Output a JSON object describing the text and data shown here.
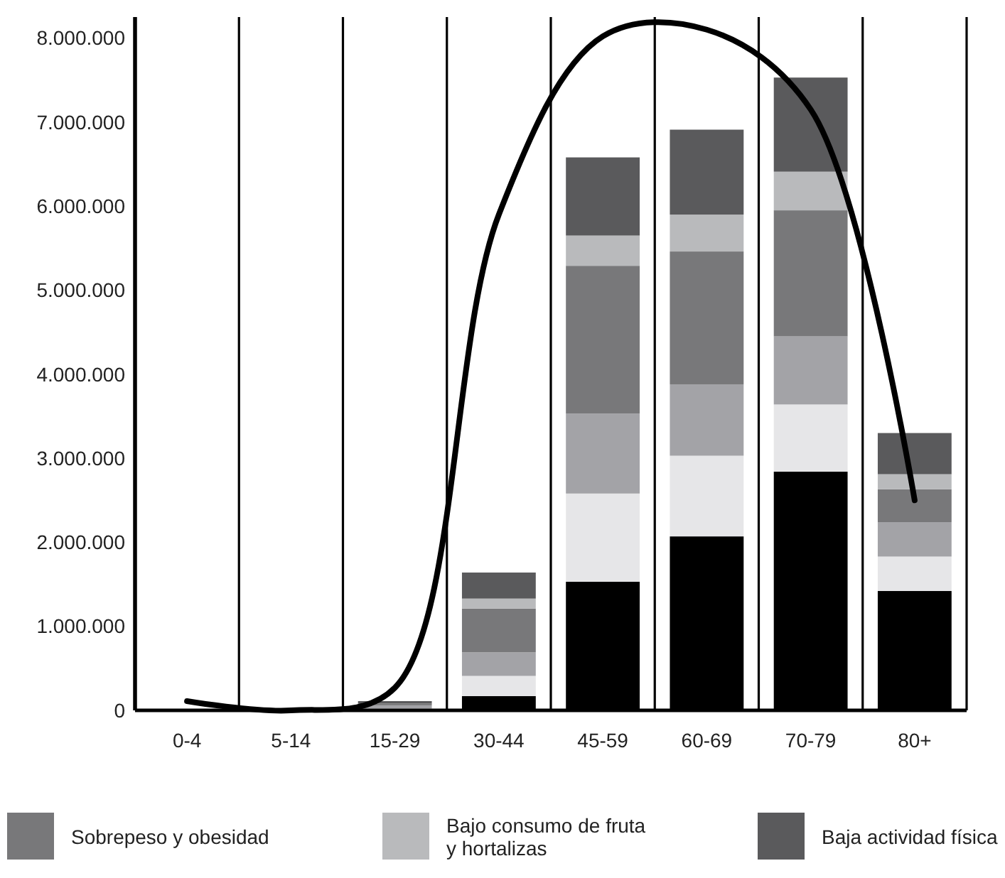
{
  "chart_data": {
    "type": "bar",
    "stacked": true,
    "categories": [
      "0-4",
      "5-14",
      "15-29",
      "30-44",
      "45-59",
      "60-69",
      "70-79",
      "80+"
    ],
    "series": [
      {
        "color": "#000000",
        "values": [
          0,
          0,
          10000,
          170000,
          1530000,
          2070000,
          2840000,
          1420000
        ]
      },
      {
        "color": "#e6e6e8",
        "values": [
          0,
          0,
          10000,
          240000,
          1050000,
          960000,
          800000,
          410000
        ]
      },
      {
        "color": "#a3a3a7",
        "values": [
          0,
          0,
          40000,
          280000,
          950000,
          850000,
          810000,
          410000
        ]
      },
      {
        "name": "Sobrepeso y obesidad",
        "color": "#78787a",
        "values": [
          null,
          0,
          20000,
          520000,
          1760000,
          1580000,
          1500000,
          390000
        ]
      },
      {
        "name": "Bajo consumo de fruta y hortalizas",
        "color": "#b9babc",
        "values": [
          0,
          0,
          null,
          120000,
          360000,
          440000,
          460000,
          180000
        ]
      },
      {
        "name": "Baja actividad física",
        "color": "#5a5a5c",
        "values": [
          0,
          0,
          30000,
          310000,
          930000,
          1010000,
          1120000,
          490000
        ]
      },
      {
        "type": "line",
        "color": "#000000",
        "values": [
          110000,
          0,
          270000,
          5900000,
          8020000,
          8100000,
          7150000,
          2500000
        ]
      }
    ],
    "ylim": [
      0,
      8250000
    ],
    "yticks": [
      {
        "value": 0,
        "label": "0"
      },
      {
        "value": 1000000,
        "label": "1.000.000"
      },
      {
        "value": 2000000,
        "label": "2.000.000"
      },
      {
        "value": 3000000,
        "label": "3.000.000"
      },
      {
        "value": 4000000,
        "label": "4.000.000"
      },
      {
        "value": 5000000,
        "label": "5.000.000"
      },
      {
        "value": 6000000,
        "label": "6.000.000"
      },
      {
        "value": 7000000,
        "label": "7.000.000"
      },
      {
        "value": 8000000,
        "label": "8.000.000"
      }
    ],
    "grid": "x",
    "legend": "bottom",
    "marker": "none",
    "line_style": "solid"
  }
}
